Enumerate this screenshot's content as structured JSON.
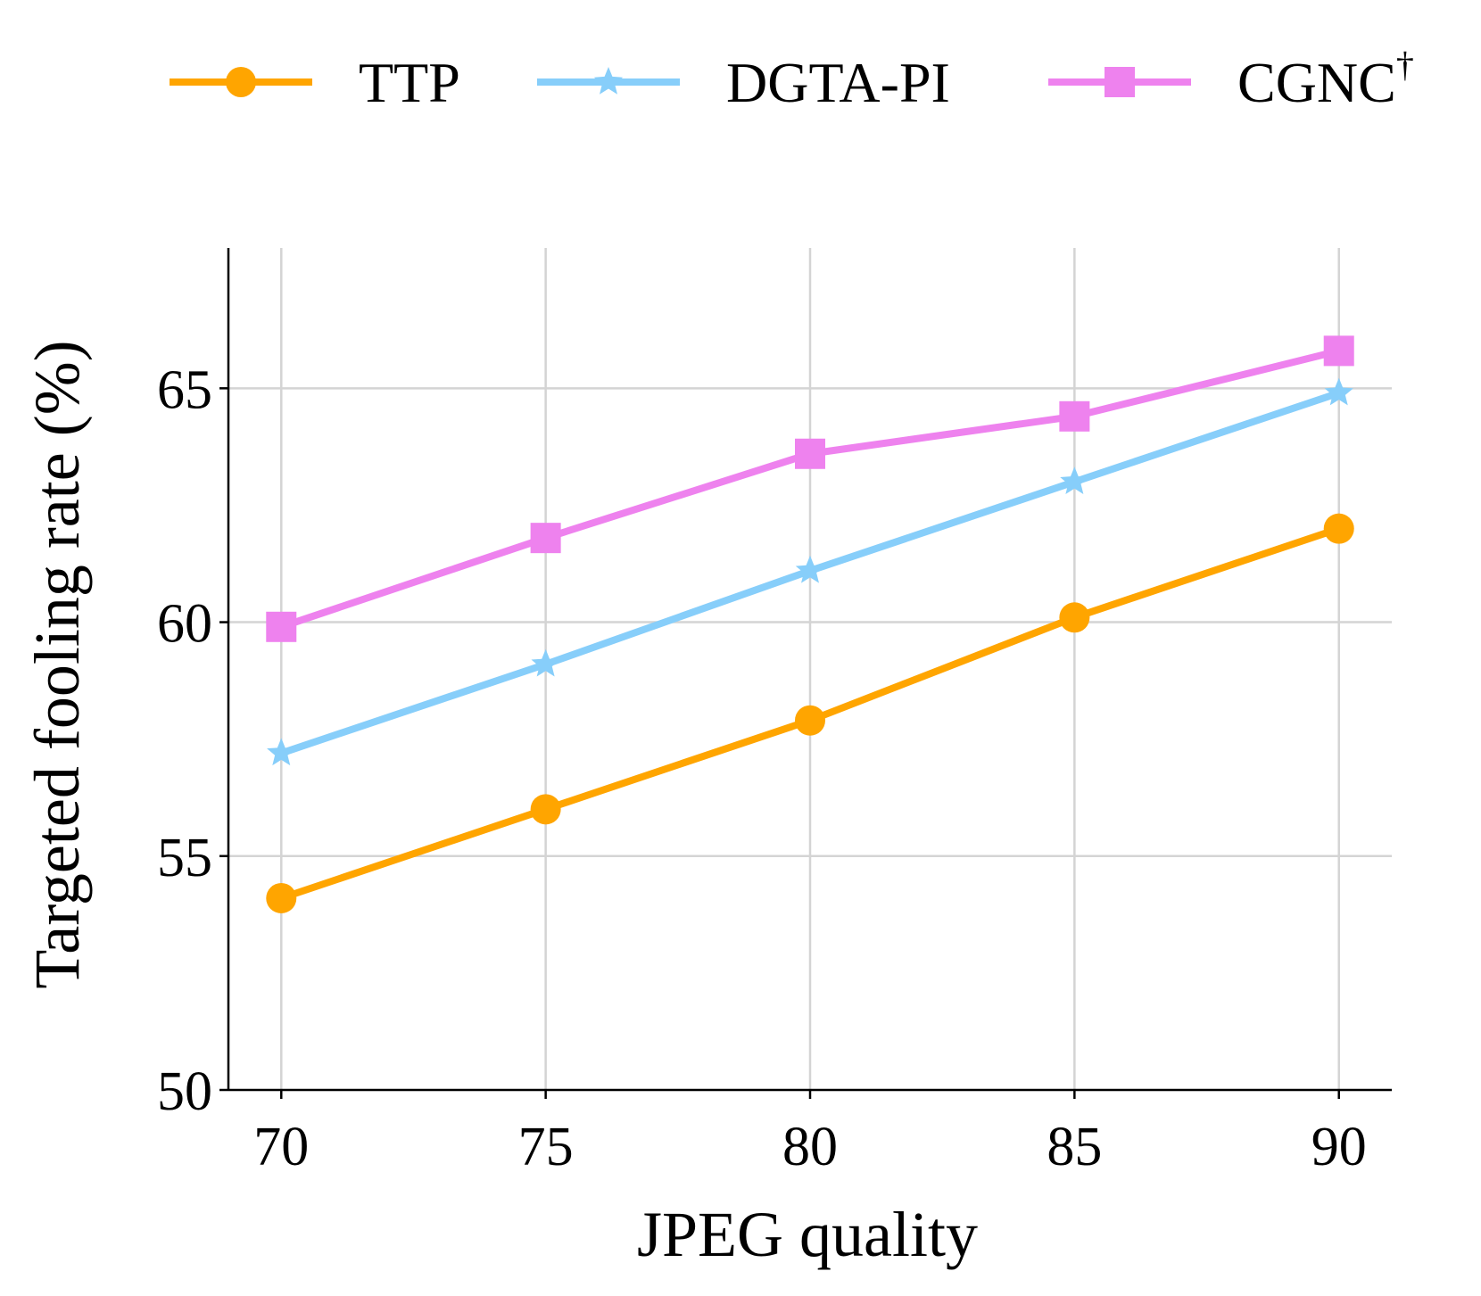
{
  "chart_data": {
    "type": "line",
    "x": [
      70,
      75,
      80,
      85,
      90
    ],
    "xlabel": "JPEG quality",
    "ylabel": "Targeted fooling rate (%)",
    "xlim": [
      69,
      91
    ],
    "ylim": [
      50,
      68
    ],
    "xticks": [
      70,
      75,
      80,
      85,
      90
    ],
    "yticks": [
      50,
      55,
      60,
      65
    ],
    "grid": true,
    "legend_position": "top",
    "series": [
      {
        "name": "TTP",
        "legend_name": "TTP",
        "color": "#FFA500",
        "marker": "circle",
        "values": [
          54.1,
          56.0,
          57.9,
          60.1,
          62.0
        ]
      },
      {
        "name": "DGTA-PI",
        "legend_name": "DGTA-PI",
        "color": "#87CEFA",
        "marker": "star",
        "values": [
          57.2,
          59.1,
          61.1,
          63.0,
          64.9
        ]
      },
      {
        "name": "CGNC",
        "legend_name": "CGNC",
        "legend_superscript": "†",
        "color": "#EE82EE",
        "marker": "square",
        "values": [
          59.9,
          61.8,
          63.6,
          64.4,
          65.8
        ]
      }
    ]
  }
}
